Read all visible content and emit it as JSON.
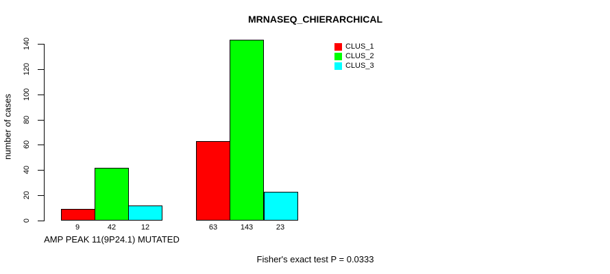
{
  "chart_data": {
    "type": "bar",
    "title": "MRNASEQ_CHIERARCHICAL",
    "ylabel": "number of cases",
    "xlabel": "",
    "categories": [
      "AMP PEAK 11(9P24.1) MUTATED",
      ""
    ],
    "series": [
      {
        "name": "CLUS_1",
        "color": "#FF0000",
        "values": [
          9,
          63
        ]
      },
      {
        "name": "CLUS_2",
        "color": "#00FF00",
        "values": [
          42,
          143
        ]
      },
      {
        "name": "CLUS_3",
        "color": "#00FFFF",
        "values": [
          12,
          23
        ]
      }
    ],
    "bar_value_labels": [
      [
        9,
        42,
        12
      ],
      [
        63,
        143,
        23
      ]
    ],
    "ylim": [
      0,
      140
    ],
    "yticks": [
      0,
      20,
      40,
      60,
      80,
      100,
      120,
      140
    ],
    "grid": false,
    "legend_position": "top-right",
    "legend_items": [
      "CLUS_1",
      "CLUS_2",
      "CLUS_3"
    ],
    "annotation": "Fisher's exact test P = 0.0333",
    "bar_outline_color": "#000000",
    "background_color": "#FFFFFF"
  }
}
